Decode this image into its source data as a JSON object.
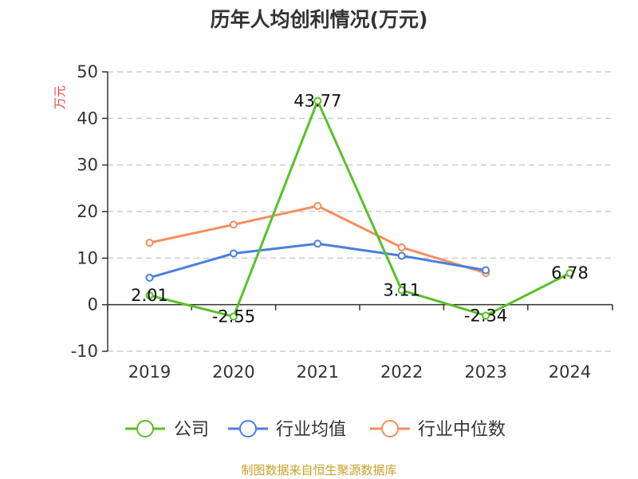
{
  "chart_data": {
    "type": "line",
    "title": "历年人均创利情况(万元)",
    "ylabel": "万元",
    "categories": [
      "2019",
      "2020",
      "2021",
      "2022",
      "2023",
      "2024"
    ],
    "ylim": [
      -10,
      50
    ],
    "yticks": [
      -10,
      0,
      10,
      20,
      30,
      40,
      50
    ],
    "grid": true,
    "legend_position": "bottom",
    "series": [
      {
        "name": "公司",
        "color": "#5ac029",
        "values": [
          2.01,
          -2.55,
          43.77,
          3.11,
          -2.34,
          6.78
        ],
        "labels": [
          "2.01",
          "-2.55",
          "43.77",
          "3.11",
          "-2.34",
          "6.78"
        ]
      },
      {
        "name": "行业均值",
        "color": "#4a7fdc",
        "values": [
          5.8,
          11.0,
          13.1,
          10.5,
          7.4,
          null
        ]
      },
      {
        "name": "行业中位数",
        "color": "#f58d5b",
        "values": [
          13.3,
          17.2,
          21.2,
          12.3,
          6.8,
          null
        ]
      }
    ]
  },
  "colors": {
    "ylabel": "#e0463d",
    "source": "#c9a227",
    "grid": "#cccccc",
    "axis": "#333333"
  },
  "footer": {
    "source": "制图数据来自恒生聚源数据库"
  }
}
